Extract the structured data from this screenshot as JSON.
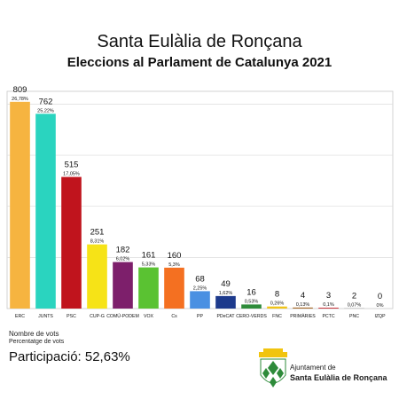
{
  "header": {
    "title": "Santa Eulàlia de Ronçana",
    "subtitle": "Eleccions al Parlament de Catalunya 2021"
  },
  "legend": {
    "votes_label": "Nombre de vots",
    "pct_label": "Percentatge de vots"
  },
  "participation": "Participació: 52,63%",
  "logo": {
    "line1": "Ajuntament de",
    "line2": "Santa Eulàlia de Ronçana",
    "emblem": "shield-icon"
  },
  "chart_data": {
    "type": "bar",
    "categories": [
      "ERC",
      "JUNTS",
      "PSC",
      "CUP-G",
      "COMÚ-PODEM",
      "VOX",
      "Cs",
      "PP",
      "PDeCAT",
      "CERO-VERDS",
      "FNC",
      "PRIMÀRIES",
      "PCTC",
      "PNC",
      "IZQP"
    ],
    "values": [
      809,
      762,
      515,
      251,
      182,
      161,
      160,
      68,
      49,
      16,
      8,
      4,
      3,
      2,
      0
    ],
    "percent_labels": [
      "26,78%",
      "25,22%",
      "17,05%",
      "8,31%",
      "6,02%",
      "5,33%",
      "5,3%",
      "2,25%",
      "1,62%",
      "0,53%",
      "0,26%",
      "0,13%",
      "0,1%",
      "0,07%",
      "0%"
    ],
    "colors": [
      "#f6b440",
      "#2ad4bf",
      "#c0141d",
      "#f6e317",
      "#7d1f6b",
      "#5ac232",
      "#f47021",
      "#4a90e2",
      "#1d3a8c",
      "#2e8b3a",
      "#f0c419",
      "#a66a2a",
      "#c0141d",
      "#b5b5b5",
      "#888888"
    ],
    "ylim": [
      0,
      850
    ],
    "grid": true,
    "xlabel": "",
    "ylabel": ""
  }
}
